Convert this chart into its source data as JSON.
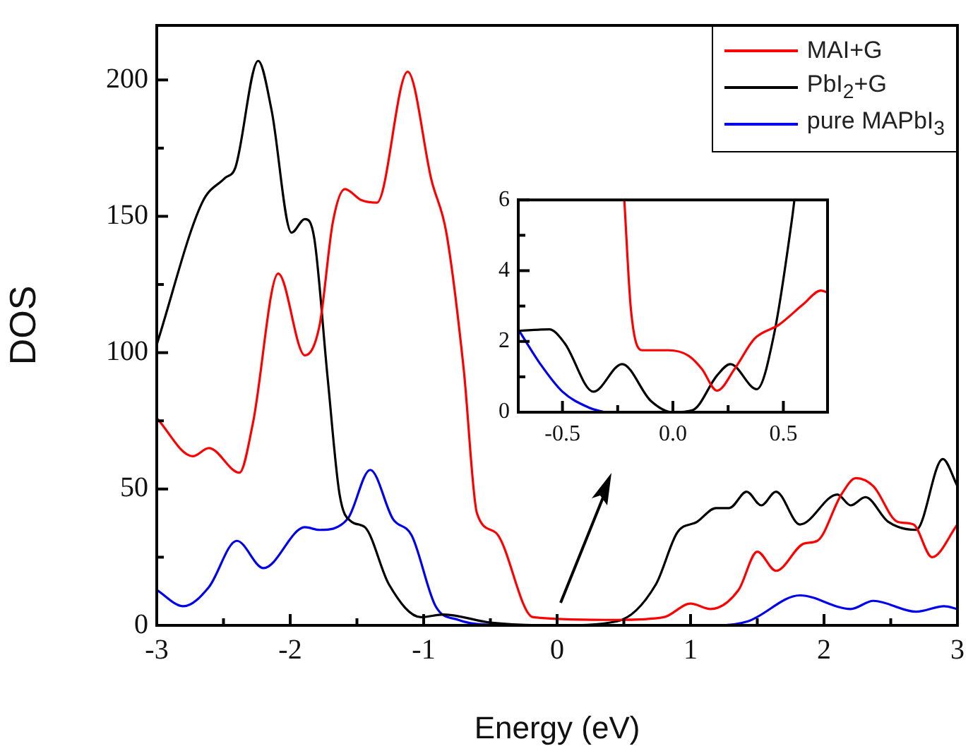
{
  "chart_data": [
    {
      "type": "line",
      "xlabel": "Energy (eV)",
      "ylabel": "DOS",
      "xlim": [
        -3,
        3
      ],
      "ylim": [
        0,
        220
      ],
      "xticks": [
        -3,
        {
          "value": -2.5,
          "label": null
        },
        -2,
        {
          "value": -1.5,
          "label": null
        },
        -1,
        {
          "value": -0.5,
          "label": null
        },
        0,
        {
          "value": 0.5,
          "label": null
        },
        1,
        {
          "value": 1.5,
          "label": null
        },
        2,
        {
          "value": 2.5,
          "label": null
        },
        3
      ],
      "yticks": [
        0,
        {
          "value": 25,
          "label": null
        },
        50,
        {
          "value": 75,
          "label": null
        },
        100,
        {
          "value": 125,
          "label": null
        },
        150,
        {
          "value": 175,
          "label": null
        },
        200
      ],
      "grid": false,
      "legend": "top right",
      "marker": "none",
      "line_style": "solid",
      "series": [
        {
          "name": "MAI+G",
          "color": "#ff0000",
          "x": [
            -3,
            -2.73,
            -2.61,
            -2.38,
            -2.28,
            -2.09,
            -1.89,
            -1.78,
            -1.68,
            -1.59,
            -1.47,
            -1.35,
            -1.12,
            -0.94,
            -0.83,
            -0.7,
            -0.6,
            -0.46,
            -0.18,
            0.45,
            0.8,
            1.0,
            1.15,
            1.36,
            1.5,
            1.64,
            1.85,
            1.95,
            2.13,
            2.24,
            2.37,
            2.55,
            2.67,
            2.81,
            3.0
          ],
          "values": [
            76,
            62,
            65,
            56,
            74,
            129,
            99,
            110,
            148,
            160,
            156,
            155,
            203,
            163,
            144,
            94,
            41,
            34,
            3,
            2,
            3,
            8,
            6,
            13,
            27,
            20,
            30,
            31,
            48,
            54,
            51,
            38,
            37,
            25,
            37
          ]
        },
        {
          "name": "PbI$_{2}$+G",
          "color": "#000000",
          "x": [
            -3,
            -2.66,
            -2.49,
            -2.41,
            -2.24,
            -2.14,
            -1.99,
            -1.89,
            -1.82,
            -1.72,
            -1.63,
            -1.54,
            -1.44,
            -1.26,
            -1.02,
            -0.85,
            -0.5,
            0.0,
            0.45,
            0.74,
            0.9,
            1.05,
            1.19,
            1.29,
            1.42,
            1.53,
            1.64,
            1.82,
            2.1,
            2.2,
            2.31,
            2.48,
            2.69,
            2.89,
            3.0
          ],
          "values": [
            103,
            155,
            164,
            168,
            207,
            189,
            144,
            149,
            142,
            91,
            48,
            38,
            36,
            15,
            3,
            4,
            1,
            0,
            1.5,
            15,
            34,
            38,
            43,
            43,
            49,
            44,
            49,
            37,
            48,
            44,
            47,
            38,
            35,
            61,
            51
          ]
        },
        {
          "name": "pure MAPbI$_{3}$",
          "color": "#0000ee",
          "x": [
            -3,
            -2.8,
            -2.61,
            -2.4,
            -2.2,
            -1.89,
            -1.78,
            -1.57,
            -1.4,
            -1.23,
            -1.09,
            -0.91,
            -0.74,
            -0.54,
            0.0,
            1.19,
            1.43,
            1.82,
            2.2,
            2.37,
            2.69,
            2.9,
            3.0
          ],
          "values": [
            13,
            7,
            14,
            31,
            21,
            36,
            35,
            39,
            57,
            39,
            33,
            7,
            2,
            0.3,
            0,
            0,
            1.5,
            11,
            6,
            9,
            5,
            7,
            6
          ]
        }
      ]
    },
    {
      "type": "line",
      "xlim": [
        -0.7,
        0.7
      ],
      "ylim": [
        0,
        6
      ],
      "xticks": [
        -0.5,
        {
          "value": -0.25,
          "label": null
        },
        {
          "value": 0,
          "label": "0.0"
        },
        {
          "value": 0.25,
          "label": null
        },
        0.5
      ],
      "yticks": [
        0,
        {
          "value": 1,
          "label": null
        },
        2,
        {
          "value": 3,
          "label": null
        },
        4,
        {
          "value": 5,
          "label": null
        },
        6
      ],
      "grid": false,
      "marker": "none",
      "line_style": "solid",
      "series": [
        {
          "color": "#ff0000",
          "x": [
            -0.22,
            -0.19,
            -0.14,
            -0.02,
            0.07,
            0.13,
            0.2,
            0.28,
            0.37,
            0.48,
            0.59,
            0.67,
            0.7
          ],
          "values": [
            6,
            2.9,
            1.75,
            1.75,
            1.6,
            1.23,
            0.61,
            1.23,
            2.08,
            2.47,
            3.05,
            3.44,
            3.38
          ]
        },
        {
          "color": "#000000",
          "x": [
            -0.7,
            -0.56,
            -0.49,
            -0.36,
            -0.23,
            -0.1,
            0.0,
            0.09,
            0.2,
            0.26,
            0.38,
            0.46,
            0.54,
            0.55
          ],
          "values": [
            2.3,
            2.34,
            1.95,
            0.58,
            1.36,
            0.32,
            0,
            0.06,
            1.04,
            1.36,
            0.65,
            2.27,
            5.5,
            6
          ]
        },
        {
          "color": "#0000ee",
          "x": [
            -0.7,
            -0.6,
            -0.5,
            -0.38,
            -0.31
          ],
          "values": [
            2.34,
            1.36,
            0.58,
            0.13,
            0
          ]
        }
      ]
    }
  ]
}
